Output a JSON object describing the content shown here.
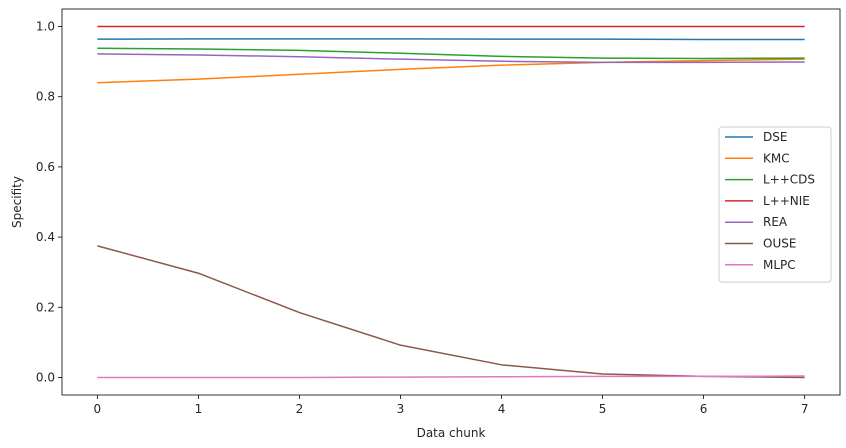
{
  "chart_data": {
    "type": "line",
    "title": "",
    "xlabel": "Data chunk",
    "ylabel": "Specifity",
    "x": [
      0,
      1,
      2,
      3,
      4,
      5,
      6,
      7
    ],
    "xlim": [
      -0.35,
      7.35
    ],
    "ylim": [
      -0.05,
      1.05
    ],
    "xticks": [
      0,
      1,
      2,
      3,
      4,
      5,
      6,
      7
    ],
    "yticks": [
      0.0,
      0.2,
      0.4,
      0.6,
      0.8,
      1.0
    ],
    "ytick_labels": [
      "0.0",
      "0.2",
      "0.4",
      "0.6",
      "0.8",
      "1.0"
    ],
    "grid": false,
    "legend": "center-right",
    "series": [
      {
        "name": "DSE",
        "color": "#1f77b4",
        "values": [
          0.964,
          0.965,
          0.965,
          0.965,
          0.964,
          0.964,
          0.963,
          0.963
        ]
      },
      {
        "name": "KMC",
        "color": "#ff7f0e",
        "values": [
          0.84,
          0.85,
          0.864,
          0.878,
          0.89,
          0.898,
          0.903,
          0.907
        ]
      },
      {
        "name": "L++CDS",
        "color": "#2ca02c",
        "values": [
          0.938,
          0.936,
          0.932,
          0.924,
          0.915,
          0.91,
          0.909,
          0.91
        ]
      },
      {
        "name": "L++NIE",
        "color": "#d62728",
        "values": [
          1.0,
          1.0,
          1.0,
          1.0,
          1.0,
          1.0,
          1.0,
          1.0
        ]
      },
      {
        "name": "REA",
        "color": "#9467bd",
        "values": [
          0.922,
          0.919,
          0.914,
          0.907,
          0.901,
          0.898,
          0.898,
          0.899
        ]
      },
      {
        "name": "OUSE",
        "color": "#8c564b",
        "values": [
          0.375,
          0.297,
          0.185,
          0.092,
          0.036,
          0.01,
          0.003,
          0.0
        ]
      },
      {
        "name": "MLPC",
        "color": "#e377c2",
        "values": [
          0.0,
          0.0,
          0.0,
          0.001,
          0.002,
          0.003,
          0.003,
          0.004
        ]
      }
    ]
  }
}
